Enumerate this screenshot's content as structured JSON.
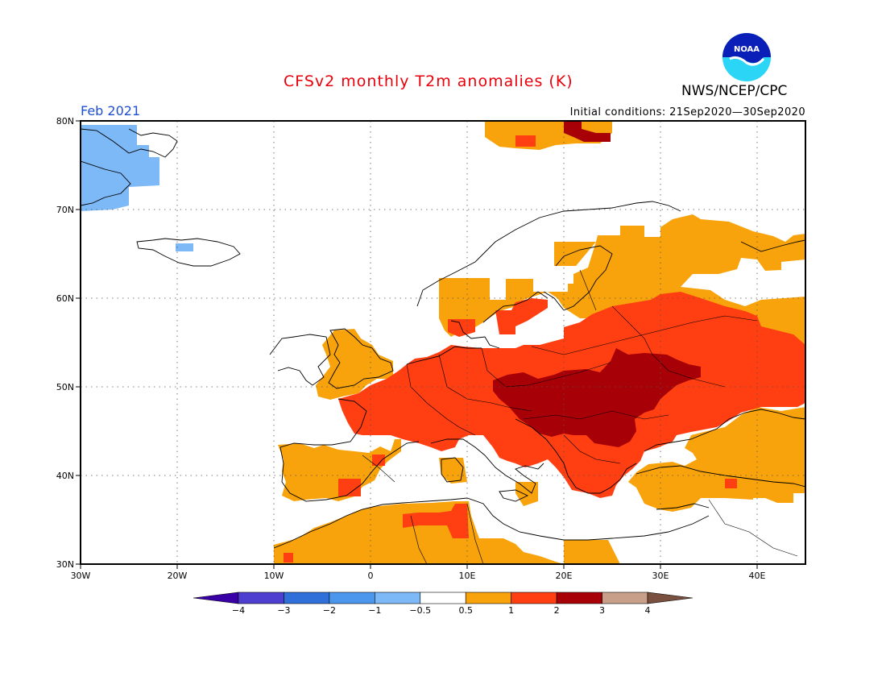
{
  "title": "CFSv2 monthly T2m anomalies (K)",
  "organization": "NWS/NCEP/CPC",
  "logo_text": "NOAA",
  "period": "Feb 2021",
  "initial_conditions": "Initial conditions: 21Sep2020—30Sep2020",
  "latitude_labels": [
    "80N",
    "70N",
    "60N",
    "50N",
    "40N",
    "30N"
  ],
  "longitude_labels": [
    "30W",
    "20W",
    "10W",
    "0",
    "10E",
    "20E",
    "30E",
    "40E"
  ],
  "colorbar": {
    "labels": [
      "−4",
      "−3",
      "−2",
      "−1",
      "−0.5",
      "0.5",
      "1",
      "2",
      "3",
      "4"
    ],
    "colors": [
      "#3a00a8",
      "#4e3fd1",
      "#2f6fd9",
      "#4b97ee",
      "#7db8f7",
      "#ffffff",
      "#f8a30c",
      "#ff3e12",
      "#a80007",
      "#c8a08a",
      "#7a5040"
    ]
  }
}
